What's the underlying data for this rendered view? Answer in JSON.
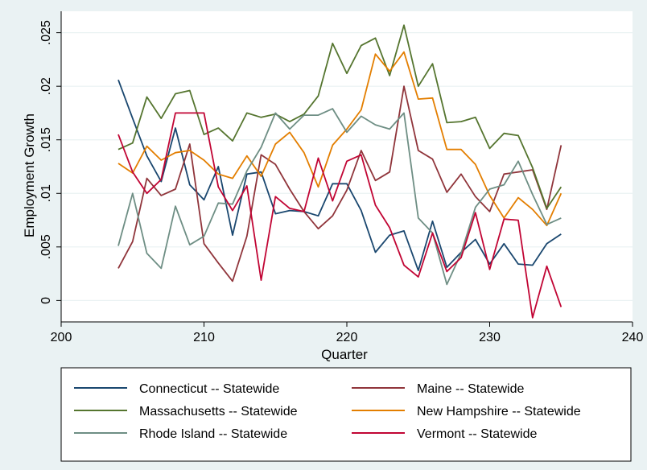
{
  "chart_data": {
    "type": "line",
    "xlabel": "Quarter",
    "ylabel": "Employment Growth",
    "xlim": [
      200,
      240
    ],
    "ylim": [
      -0.002,
      0.027
    ],
    "x_ticks": [
      200,
      210,
      220,
      230,
      240
    ],
    "x_tick_labels": [
      "200",
      "210",
      "220",
      "230",
      "240"
    ],
    "y_ticks": [
      0,
      0.005,
      0.01,
      0.015,
      0.02,
      0.025
    ],
    "y_tick_labels": [
      "0",
      ".005",
      ".01",
      ".015",
      ".02",
      ".025"
    ],
    "grid": true,
    "legend_position": "bottom",
    "x": [
      204,
      205,
      206,
      207,
      208,
      209,
      210,
      211,
      212,
      213,
      214,
      215,
      216,
      217,
      218,
      219,
      220,
      221,
      222,
      223,
      224,
      225,
      226,
      227,
      228,
      229,
      230,
      231,
      232,
      233,
      234,
      235
    ],
    "series": [
      {
        "name": "Connecticut -- Statewide",
        "color": "#1a476f",
        "values": [
          0.0206,
          0.017,
          0.0135,
          0.0111,
          0.0161,
          0.0108,
          0.0094,
          0.0125,
          0.0061,
          0.0118,
          0.012,
          0.0081,
          0.0084,
          0.0083,
          0.0079,
          0.0109,
          0.0109,
          0.0084,
          0.0045,
          0.0061,
          0.0065,
          0.0028,
          0.0074,
          0.0031,
          0.0045,
          0.0057,
          0.0034,
          0.0053,
          0.0034,
          0.0033,
          0.0053,
          0.0062
        ]
      },
      {
        "name": "Maine -- Statewide",
        "color": "#90353b",
        "values": [
          0.003,
          0.0055,
          0.0114,
          0.0098,
          0.0104,
          0.0146,
          0.0053,
          0.0035,
          0.0018,
          0.006,
          0.0136,
          0.0127,
          0.0104,
          0.0083,
          0.0067,
          0.0079,
          0.0103,
          0.014,
          0.0112,
          0.012,
          0.02,
          0.014,
          0.0132,
          0.0101,
          0.0118,
          0.0097,
          0.0083,
          0.0118,
          0.012,
          0.0122,
          0.0085,
          0.0145
        ]
      },
      {
        "name": "Massachusetts -- Statewide",
        "color": "#55752f",
        "values": [
          0.0141,
          0.0147,
          0.019,
          0.017,
          0.0193,
          0.0196,
          0.0155,
          0.0161,
          0.0149,
          0.0175,
          0.0171,
          0.0174,
          0.0167,
          0.0174,
          0.0191,
          0.024,
          0.0212,
          0.0238,
          0.0245,
          0.021,
          0.0257,
          0.02,
          0.0221,
          0.0166,
          0.0167,
          0.0171,
          0.0142,
          0.0156,
          0.0154,
          0.0124,
          0.0086,
          0.0106
        ]
      },
      {
        "name": "New Hampshire -- Statewide",
        "color": "#e37e00",
        "values": [
          0.0128,
          0.0119,
          0.0144,
          0.0131,
          0.0138,
          0.014,
          0.0131,
          0.0118,
          0.0114,
          0.0135,
          0.0116,
          0.0146,
          0.0157,
          0.0138,
          0.0106,
          0.0145,
          0.016,
          0.0178,
          0.023,
          0.0214,
          0.0232,
          0.0188,
          0.0189,
          0.0141,
          0.0141,
          0.0127,
          0.0098,
          0.0077,
          0.0096,
          0.0085,
          0.007,
          0.01
        ]
      },
      {
        "name": "Rhode Island -- Statewide",
        "color": "#6e8e84",
        "values": [
          0.0051,
          0.01,
          0.0044,
          0.003,
          0.0088,
          0.0052,
          0.006,
          0.0091,
          0.009,
          0.0121,
          0.0143,
          0.0175,
          0.016,
          0.0173,
          0.0173,
          0.0179,
          0.0157,
          0.0172,
          0.0164,
          0.016,
          0.0175,
          0.0077,
          0.0063,
          0.0015,
          0.0044,
          0.0087,
          0.0104,
          0.0108,
          0.013,
          0.0099,
          0.0071,
          0.0077
        ]
      },
      {
        "name": "Vermont -- Statewide",
        "color": "#c10534",
        "values": [
          0.0155,
          0.012,
          0.01,
          0.0113,
          0.0175,
          0.0175,
          0.0175,
          0.0106,
          0.0084,
          0.0107,
          0.0019,
          0.0097,
          0.0086,
          0.0083,
          0.0133,
          0.0093,
          0.013,
          0.0136,
          0.0089,
          0.0068,
          0.0033,
          0.0022,
          0.0063,
          0.0027,
          0.004,
          0.0082,
          0.0029,
          0.0076,
          0.0075,
          -0.0016,
          0.0032,
          -0.0006
        ]
      }
    ]
  }
}
